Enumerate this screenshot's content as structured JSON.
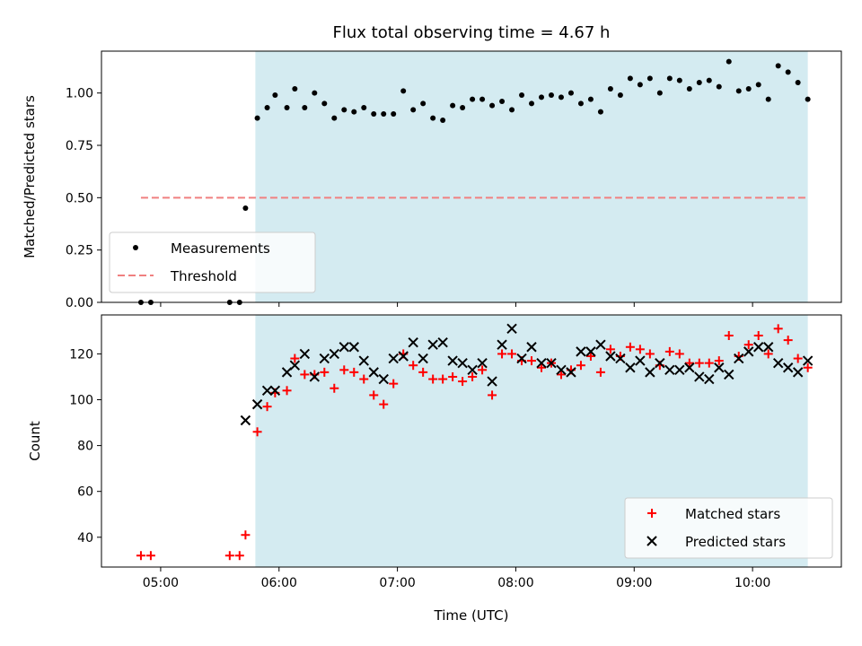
{
  "chart_data": [
    {
      "type": "scatter",
      "title": "Flux total observing time = 4.67 h",
      "xlabel": "",
      "ylabel": "Matched/Predicted stars",
      "x_type": "time",
      "x_range": [
        "04:30",
        "10:45"
      ],
      "x_ticks": [
        "05:00",
        "06:00",
        "07:00",
        "08:00",
        "09:00",
        "10:00"
      ],
      "ylim": [
        0,
        1.2
      ],
      "y_ticks": [
        "0.00",
        "0.25",
        "0.50",
        "0.75",
        "1.00"
      ],
      "shaded_span": {
        "x_start": "05:48",
        "x_end": "10:28",
        "color": "#d4ebf1"
      },
      "threshold": {
        "label": "Threshold",
        "y": 0.5,
        "x_start": "04:50",
        "x_end": "10:28",
        "color": "#f08080"
      },
      "legend": {
        "position": "lower-left",
        "entries": [
          "Measurements",
          "Threshold"
        ]
      },
      "series": [
        {
          "name": "Measurements",
          "marker": "dot",
          "color": "#000000",
          "points": [
            [
              "04:50",
              0.0
            ],
            [
              "04:55",
              0.0
            ],
            [
              "05:35",
              0.0
            ],
            [
              "05:40",
              0.0
            ],
            [
              "05:43",
              0.45
            ],
            [
              "05:49",
              0.88
            ],
            [
              "05:54",
              0.93
            ],
            [
              "05:58",
              0.99
            ],
            [
              "06:04",
              0.93
            ],
            [
              "06:08",
              1.02
            ],
            [
              "06:13",
              0.93
            ],
            [
              "06:18",
              1.0
            ],
            [
              "06:23",
              0.95
            ],
            [
              "06:28",
              0.88
            ],
            [
              "06:33",
              0.92
            ],
            [
              "06:38",
              0.91
            ],
            [
              "06:43",
              0.93
            ],
            [
              "06:48",
              0.9
            ],
            [
              "06:53",
              0.9
            ],
            [
              "06:58",
              0.9
            ],
            [
              "07:03",
              1.01
            ],
            [
              "07:08",
              0.92
            ],
            [
              "07:13",
              0.95
            ],
            [
              "07:18",
              0.88
            ],
            [
              "07:23",
              0.87
            ],
            [
              "07:28",
              0.94
            ],
            [
              "07:33",
              0.93
            ],
            [
              "07:38",
              0.97
            ],
            [
              "07:43",
              0.97
            ],
            [
              "07:48",
              0.94
            ],
            [
              "07:53",
              0.96
            ],
            [
              "07:58",
              0.92
            ],
            [
              "08:03",
              0.99
            ],
            [
              "08:08",
              0.95
            ],
            [
              "08:13",
              0.98
            ],
            [
              "08:18",
              0.99
            ],
            [
              "08:23",
              0.98
            ],
            [
              "08:28",
              1.0
            ],
            [
              "08:33",
              0.95
            ],
            [
              "08:38",
              0.97
            ],
            [
              "08:43",
              0.91
            ],
            [
              "08:48",
              1.02
            ],
            [
              "08:53",
              0.99
            ],
            [
              "08:58",
              1.07
            ],
            [
              "09:03",
              1.04
            ],
            [
              "09:08",
              1.07
            ],
            [
              "09:13",
              1.0
            ],
            [
              "09:18",
              1.07
            ],
            [
              "09:23",
              1.06
            ],
            [
              "09:28",
              1.02
            ],
            [
              "09:33",
              1.05
            ],
            [
              "09:38",
              1.06
            ],
            [
              "09:43",
              1.03
            ],
            [
              "09:48",
              1.15
            ],
            [
              "09:53",
              1.01
            ],
            [
              "09:58",
              1.02
            ],
            [
              "10:03",
              1.04
            ],
            [
              "10:08",
              0.97
            ],
            [
              "10:13",
              1.13
            ],
            [
              "10:18",
              1.1
            ],
            [
              "10:23",
              1.05
            ],
            [
              "10:28",
              0.97
            ]
          ]
        }
      ]
    },
    {
      "type": "scatter",
      "title": "",
      "xlabel": "Time (UTC)",
      "ylabel": "Count",
      "x_type": "time",
      "x_range": [
        "04:30",
        "10:45"
      ],
      "x_ticks": [
        "05:00",
        "06:00",
        "07:00",
        "08:00",
        "09:00",
        "10:00"
      ],
      "ylim": [
        27,
        137
      ],
      "y_ticks": [
        "40",
        "60",
        "80",
        "100",
        "120"
      ],
      "shaded_span": {
        "x_start": "05:48",
        "x_end": "10:28",
        "color": "#d4ebf1"
      },
      "legend": {
        "position": "lower-right",
        "entries": [
          "Matched stars",
          "Predicted stars"
        ]
      },
      "series": [
        {
          "name": "Matched stars",
          "marker": "plus",
          "color": "#ff0000",
          "points": [
            [
              "04:50",
              32
            ],
            [
              "04:55",
              32
            ],
            [
              "05:35",
              32
            ],
            [
              "05:40",
              32
            ],
            [
              "05:43",
              41
            ],
            [
              "05:49",
              86
            ],
            [
              "05:54",
              97
            ],
            [
              "05:58",
              103
            ],
            [
              "06:04",
              104
            ],
            [
              "06:08",
              118
            ],
            [
              "06:13",
              111
            ],
            [
              "06:18",
              111
            ],
            [
              "06:23",
              112
            ],
            [
              "06:28",
              105
            ],
            [
              "06:33",
              113
            ],
            [
              "06:38",
              112
            ],
            [
              "06:43",
              109
            ],
            [
              "06:48",
              102
            ],
            [
              "06:53",
              98
            ],
            [
              "06:58",
              107
            ],
            [
              "07:03",
              120
            ],
            [
              "07:08",
              115
            ],
            [
              "07:13",
              112
            ],
            [
              "07:18",
              109
            ],
            [
              "07:23",
              109
            ],
            [
              "07:28",
              110
            ],
            [
              "07:33",
              108
            ],
            [
              "07:38",
              110
            ],
            [
              "07:43",
              113
            ],
            [
              "07:48",
              102
            ],
            [
              "07:53",
              120
            ],
            [
              "07:58",
              120
            ],
            [
              "08:03",
              117
            ],
            [
              "08:08",
              117
            ],
            [
              "08:13",
              114
            ],
            [
              "08:18",
              116
            ],
            [
              "08:23",
              111
            ],
            [
              "08:28",
              113
            ],
            [
              "08:33",
              115
            ],
            [
              "08:38",
              119
            ],
            [
              "08:43",
              112
            ],
            [
              "08:48",
              122
            ],
            [
              "08:53",
              119
            ],
            [
              "08:58",
              123
            ],
            [
              "09:03",
              122
            ],
            [
              "09:08",
              120
            ],
            [
              "09:13",
              115
            ],
            [
              "09:18",
              121
            ],
            [
              "09:23",
              120
            ],
            [
              "09:28",
              116
            ],
            [
              "09:33",
              116
            ],
            [
              "09:38",
              116
            ],
            [
              "09:43",
              117
            ],
            [
              "09:48",
              128
            ],
            [
              "09:53",
              119
            ],
            [
              "09:58",
              124
            ],
            [
              "10:03",
              128
            ],
            [
              "10:08",
              120
            ],
            [
              "10:13",
              131
            ],
            [
              "10:18",
              126
            ],
            [
              "10:23",
              118
            ],
            [
              "10:28",
              114
            ]
          ]
        },
        {
          "name": "Predicted stars",
          "marker": "x",
          "color": "#000000",
          "points": [
            [
              "05:43",
              91
            ],
            [
              "05:49",
              98
            ],
            [
              "05:54",
              104
            ],
            [
              "05:58",
              104
            ],
            [
              "06:04",
              112
            ],
            [
              "06:08",
              115
            ],
            [
              "06:13",
              120
            ],
            [
              "06:18",
              110
            ],
            [
              "06:23",
              118
            ],
            [
              "06:28",
              120
            ],
            [
              "06:33",
              123
            ],
            [
              "06:38",
              123
            ],
            [
              "06:43",
              117
            ],
            [
              "06:48",
              112
            ],
            [
              "06:53",
              109
            ],
            [
              "06:58",
              118
            ],
            [
              "07:03",
              119
            ],
            [
              "07:08",
              125
            ],
            [
              "07:13",
              118
            ],
            [
              "07:18",
              124
            ],
            [
              "07:23",
              125
            ],
            [
              "07:28",
              117
            ],
            [
              "07:33",
              116
            ],
            [
              "07:38",
              113
            ],
            [
              "07:43",
              116
            ],
            [
              "07:48",
              108
            ],
            [
              "07:53",
              124
            ],
            [
              "07:58",
              131
            ],
            [
              "08:03",
              118
            ],
            [
              "08:08",
              123
            ],
            [
              "08:13",
              116
            ],
            [
              "08:18",
              116
            ],
            [
              "08:23",
              113
            ],
            [
              "08:28",
              112
            ],
            [
              "08:33",
              121
            ],
            [
              "08:38",
              121
            ],
            [
              "08:43",
              124
            ],
            [
              "08:48",
              119
            ],
            [
              "08:53",
              118
            ],
            [
              "08:58",
              114
            ],
            [
              "09:03",
              117
            ],
            [
              "09:08",
              112
            ],
            [
              "09:13",
              116
            ],
            [
              "09:18",
              113
            ],
            [
              "09:23",
              113
            ],
            [
              "09:28",
              114
            ],
            [
              "09:33",
              110
            ],
            [
              "09:38",
              109
            ],
            [
              "09:43",
              114
            ],
            [
              "09:48",
              111
            ],
            [
              "09:53",
              118
            ],
            [
              "09:58",
              121
            ],
            [
              "10:03",
              123
            ],
            [
              "10:08",
              123
            ],
            [
              "10:13",
              116
            ],
            [
              "10:18",
              114
            ],
            [
              "10:23",
              112
            ],
            [
              "10:28",
              117
            ]
          ]
        }
      ]
    }
  ]
}
